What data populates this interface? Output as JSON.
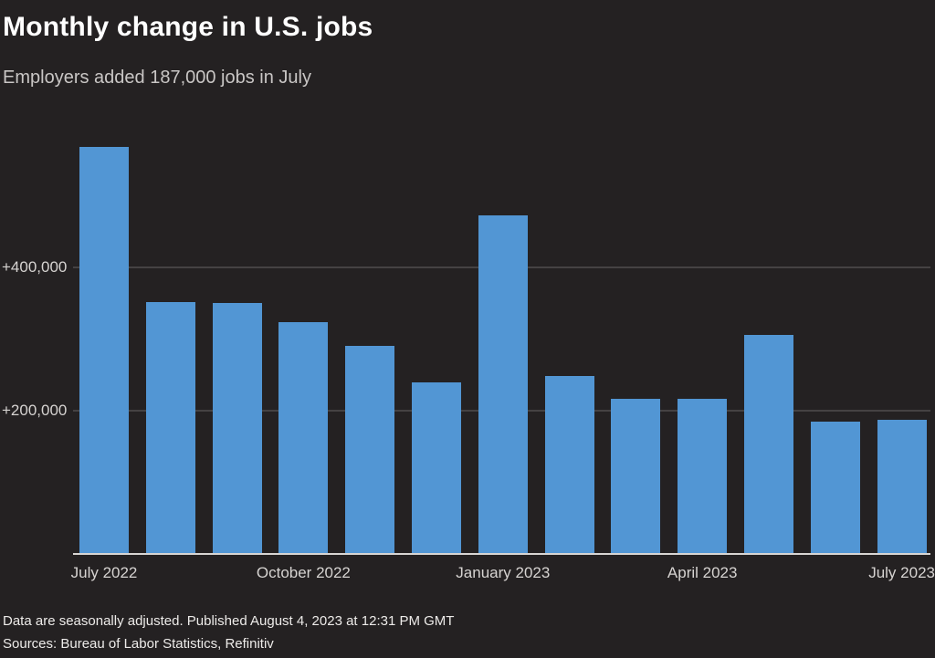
{
  "page": {
    "background": "#242122"
  },
  "header": {
    "title": "Monthly change in U.S. jobs",
    "subtitle": "Employers added 187,000 jobs in July"
  },
  "chart_data": {
    "type": "bar",
    "title": "Monthly change in U.S. jobs",
    "subtitle": "Employers added 187,000 jobs in July",
    "categories": [
      "July 2022",
      "August 2022",
      "September 2022",
      "October 2022",
      "November 2022",
      "December 2022",
      "January 2023",
      "February 2023",
      "March 2023",
      "April 2023",
      "May 2023",
      "June 2023",
      "July 2023"
    ],
    "values": [
      568000,
      352000,
      350000,
      324000,
      290000,
      239000,
      472000,
      248000,
      217000,
      217000,
      306000,
      185000,
      187000
    ],
    "unit": "jobs per month, seasonally adjusted",
    "ylim": [
      0,
      582000
    ],
    "yticks": [
      {
        "value": 200000,
        "label": "+200,000"
      },
      {
        "value": 400000,
        "label": "+400,000"
      }
    ],
    "xticks": [
      {
        "index": 0,
        "label": "July 2022"
      },
      {
        "index": 3,
        "label": "October 2022"
      },
      {
        "index": 6,
        "label": "January 2023"
      },
      {
        "index": 9,
        "label": "April 2023"
      },
      {
        "index": 12,
        "label": "July 2023"
      }
    ],
    "grid": true,
    "legend_position": "none",
    "bar_color": "#5296d4",
    "gridline_color": "#454243",
    "axis_line_color": "#d8d5d3",
    "tick_label_color": "#d6d3d1",
    "background_color": "#242122"
  },
  "footer": {
    "note": "Data are seasonally adjusted. Published August 4, 2023 at 12:31 PM GMT",
    "sources": "Sources: Bureau of Labor Statistics, Refinitiv"
  }
}
